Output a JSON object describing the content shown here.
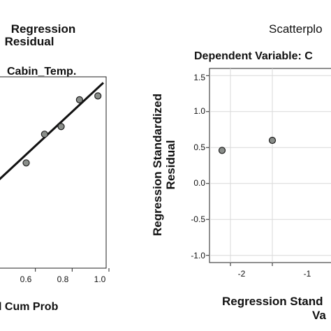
{
  "colors": {
    "axis": "#222222",
    "grid": "#d9d9d9",
    "point_fill": "#8a8e8a",
    "point_stroke": "#1e1e1e",
    "line": "#111111"
  },
  "left_chart": {
    "title_line1": "Regression",
    "title_line2": "Residual",
    "dependent_label": "Cabin_Temp.",
    "xlabel": "l Cum Prob",
    "x_tick_labels": [
      "0.6",
      "0.8",
      "1.0"
    ]
  },
  "right_chart": {
    "title": "Scatterplo",
    "dependent_label": "Dependent Variable: C",
    "ylabel_line1": "Regression Standardized",
    "ylabel_line2": "Residual",
    "xlabel_line1": "Regression Stand",
    "xlabel_line2": "Va",
    "y_tick_labels": [
      "1.5",
      "1.0",
      "0.5",
      "0.0",
      "-0.5",
      "-1.0"
    ],
    "x_tick_labels": [
      "-2",
      "-1"
    ]
  },
  "chart_data": [
    {
      "type": "scatter",
      "title": "Regression Residual",
      "subtitle": "Cabin_Temp.",
      "xlabel": "l Cum Prob",
      "ylabel": "",
      "xlim": [
        0.4,
        1.0
      ],
      "ylim": [
        0.0,
        1.0
      ],
      "series": [
        {
          "x": [
            0.55,
            0.65,
            0.74,
            0.84,
            0.94
          ],
          "y": [
            0.55,
            0.7,
            0.74,
            0.88,
            0.9
          ]
        }
      ],
      "reference_line": {
        "x": [
          0.4,
          1.0
        ],
        "y": [
          0.46,
          0.98
        ]
      },
      "grid": false
    },
    {
      "type": "scatter",
      "title": "Scatterplo",
      "subtitle": "Dependent Variable: C",
      "xlabel": "Regression Stand Va",
      "ylabel": "Regression Standardized Residual",
      "xlim": [
        -2.5,
        0.5
      ],
      "ylim": [
        -1.1,
        1.6
      ],
      "series": [
        {
          "x": [
            -2.2,
            -1.0
          ],
          "y": [
            0.46,
            0.6
          ]
        }
      ],
      "grid": true
    }
  ]
}
